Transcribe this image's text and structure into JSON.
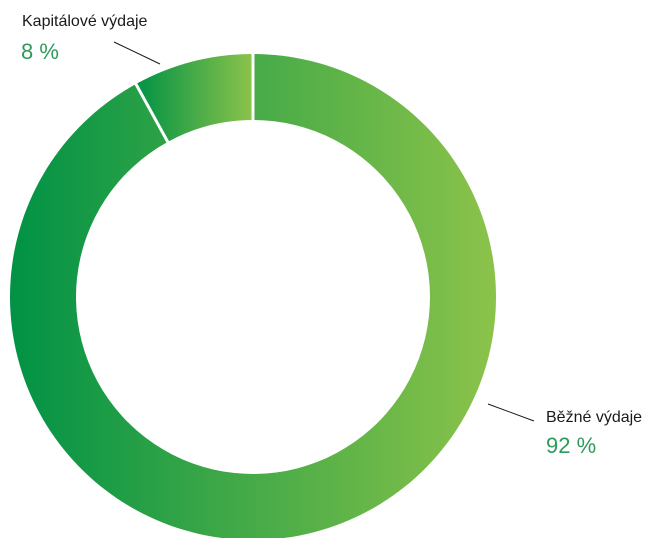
{
  "chart_data": {
    "type": "pie",
    "variant": "donut",
    "title": "",
    "unit": "%",
    "legend": "none",
    "slices": [
      {
        "label": "Běžné výdaje",
        "value": 92,
        "value_text": "92 %",
        "color_start": "#009245",
        "color_end": "#8cc34a"
      },
      {
        "label": "Kapitálové výdaje",
        "value": 8,
        "value_text": "8 %",
        "color_start": "#009245",
        "color_end": "#8cc34a"
      }
    ],
    "background": "#ffffff",
    "separator_color": "#ffffff",
    "label_text_color": "#1a1a1a",
    "value_text_color": "#2e9a5c",
    "leader_line_color": "#1a1a1a"
  }
}
